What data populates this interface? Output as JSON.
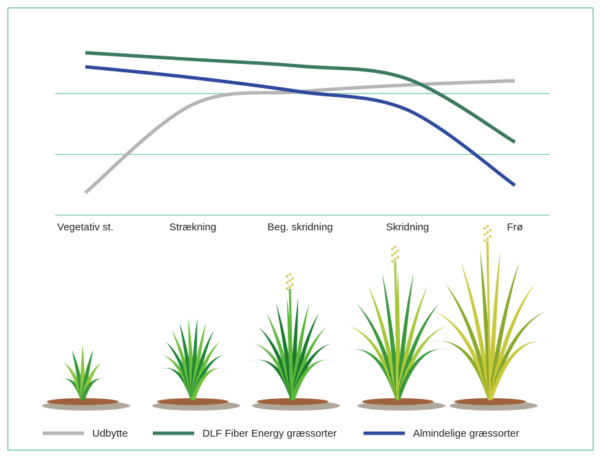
{
  "chart_data": {
    "type": "line",
    "categories": [
      "Vegetativ st.",
      "Strækning",
      "Beg. skridning",
      "Skridning",
      "Frø"
    ],
    "series": [
      {
        "name": "Udbytte",
        "color": "#b5b5b5",
        "values": [
          0.37,
          1.82,
          2.03,
          2.14,
          2.21
        ]
      },
      {
        "name": "DLF Fiber Energy græssorter",
        "color": "#3b7a5e",
        "values": [
          2.67,
          2.56,
          2.45,
          2.24,
          1.2
        ]
      },
      {
        "name": "Almindelige græssorter",
        "color": "#2e4a9c",
        "values": [
          2.44,
          2.26,
          2.03,
          1.73,
          0.49
        ]
      }
    ],
    "ylim": [
      0,
      3
    ],
    "yticks": [
      0,
      1,
      2
    ],
    "grid": true,
    "grid_color": "#6cc6a2",
    "legend": "bottom"
  }
}
